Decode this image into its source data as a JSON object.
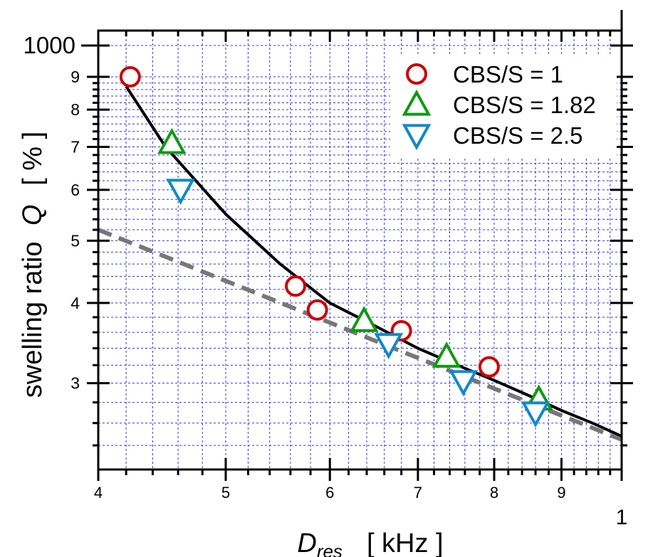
{
  "chart_data": {
    "type": "scatter",
    "title": "",
    "xlabel": {
      "main": "D",
      "subscript": "res",
      "unit": "[ kHz ]"
    },
    "ylabel": {
      "main": "swelling ratio",
      "symbol": "Q",
      "unit": "[ % ]"
    },
    "x_scale": "log",
    "y_scale": "log",
    "xlim": [
      4,
      10
    ],
    "ylim": [
      2.3,
      1000
    ],
    "x_tick_labels": [
      "4",
      "5",
      "6",
      "7",
      "8",
      "9",
      "1"
    ],
    "y_tick_labels": [
      "1000",
      "9",
      "8",
      "7",
      "6",
      "5",
      "4",
      "3"
    ],
    "grid": true,
    "legend_position": "top-right",
    "series": [
      {
        "name": "CBS/S = 1",
        "marker": "circle",
        "color": "#cc0000",
        "points": [
          [
            4.23,
            9.0
          ],
          [
            5.65,
            4.25
          ],
          [
            5.87,
            3.9
          ],
          [
            6.8,
            3.62
          ],
          [
            7.93,
            3.18
          ]
        ]
      },
      {
        "name": "CBS/S = 1.82",
        "marker": "triangle-up",
        "color": "#119911",
        "points": [
          [
            4.55,
            7.1
          ],
          [
            6.37,
            3.75
          ],
          [
            7.36,
            3.3
          ],
          [
            8.65,
            2.83
          ]
        ]
      },
      {
        "name": "CBS/S = 2.5",
        "marker": "triangle-down",
        "color": "#1188cc",
        "points": [
          [
            4.62,
            6.0
          ],
          [
            6.65,
            3.45
          ],
          [
            7.58,
            3.02
          ],
          [
            8.6,
            2.7
          ]
        ]
      }
    ],
    "fit_curves": [
      {
        "style": "solid",
        "color": "#000000",
        "points": [
          [
            4.2,
            8.7
          ],
          [
            4.5,
            7.0
          ],
          [
            5.0,
            5.5
          ],
          [
            5.5,
            4.6
          ],
          [
            6.0,
            4.0
          ],
          [
            6.5,
            3.68
          ],
          [
            7.0,
            3.4
          ],
          [
            7.5,
            3.2
          ],
          [
            8.0,
            3.03
          ],
          [
            8.5,
            2.87
          ],
          [
            9.0,
            2.72
          ],
          [
            9.5,
            2.6
          ],
          [
            10.0,
            2.48
          ]
        ]
      },
      {
        "style": "dashed",
        "color": "#777777",
        "points": [
          [
            4.0,
            5.2
          ],
          [
            10.0,
            2.45
          ]
        ]
      }
    ]
  }
}
